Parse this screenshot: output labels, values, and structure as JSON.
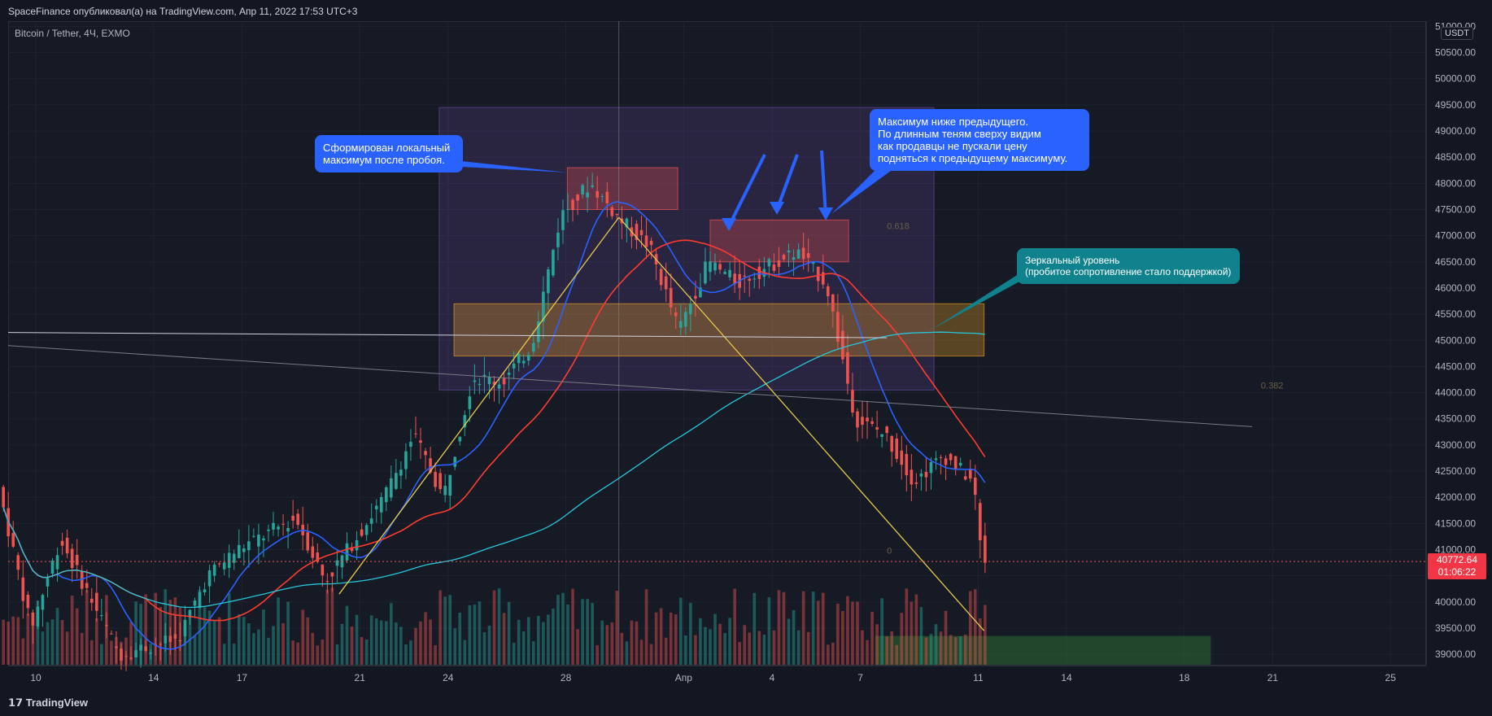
{
  "header": {
    "publish_line": "SpaceFinance опубликовал(а) на TradingView.com, Апр 11, 2022 17:53 UTC+3",
    "symbol": "Bitcoin / Tether, 4Ч, EXMO",
    "currency_badge": "USDT"
  },
  "footer": {
    "logo_text": "TradingView"
  },
  "last_price": {
    "value": "40772.64",
    "countdown": "01:06:22"
  },
  "callouts": {
    "local_max": "Сформирован локальный\nмаксимум после пробоя.",
    "lower_max": "Максимум ниже предыдущего.\nПо длинным теням сверху видим\nкак продавцы не пускали цену\nподняться к предыдущему максимуму.",
    "mirror_level": "Зеркальный уровень\n(пробитое сопротивление стало поддержкой)"
  },
  "fib_labels": {
    "f0618": "0.618",
    "f0382": "0.382",
    "f0": "0"
  },
  "colors": {
    "up": "#26a69a",
    "down": "#ef5350",
    "ma_fast": "#2962ff",
    "ma_mid": "#ff3b30",
    "ma_slow": "#26c6da",
    "trend": "#e6c84c",
    "zone_orange": "#f5a623",
    "zone_purple": "#7e57c2",
    "zone_green": "#2e7d32"
  },
  "chart_data": {
    "type": "candlestick",
    "title": "Bitcoin / Tether, 4Ч, EXMO",
    "ylim": [
      38800,
      51100
    ],
    "y_ticks": [
      39000,
      39500,
      40000,
      40500,
      41000,
      41500,
      42000,
      42500,
      43000,
      43500,
      44000,
      44500,
      45000,
      45500,
      46000,
      46500,
      47000,
      47500,
      48000,
      48500,
      49000,
      49500,
      50000,
      50500,
      51000
    ],
    "x_tick_labels": [
      "10",
      "14",
      "17",
      "21",
      "24",
      "28",
      "Апр",
      "4",
      "7",
      "11",
      "14",
      "18",
      "21",
      "25"
    ],
    "key_points": [
      {
        "date": "Mar 10",
        "price": 39000
      },
      {
        "date": "Mar 20",
        "price": 40100
      },
      {
        "date": "Mar 25",
        "price": 44300
      },
      {
        "date": "Mar 28",
        "price": 47400
      },
      {
        "date": "Mar 29",
        "price": 48000
      },
      {
        "date": "Apr 2",
        "price": 46500
      },
      {
        "date": "Apr 5",
        "price": 47200
      },
      {
        "date": "Apr 7",
        "price": 43500
      },
      {
        "date": "Apr 10",
        "price": 42500
      },
      {
        "date": "Apr 11",
        "price": 40772.64
      }
    ],
    "zones": [
      {
        "name": "resistance-turned-support",
        "from": 44700,
        "to": 45700
      },
      {
        "name": "local-max",
        "from": 47500,
        "to": 48300
      },
      {
        "name": "lower-max",
        "from": 46500,
        "to": 47300
      },
      {
        "name": "target",
        "from": 38800,
        "to": 39350
      }
    ]
  }
}
